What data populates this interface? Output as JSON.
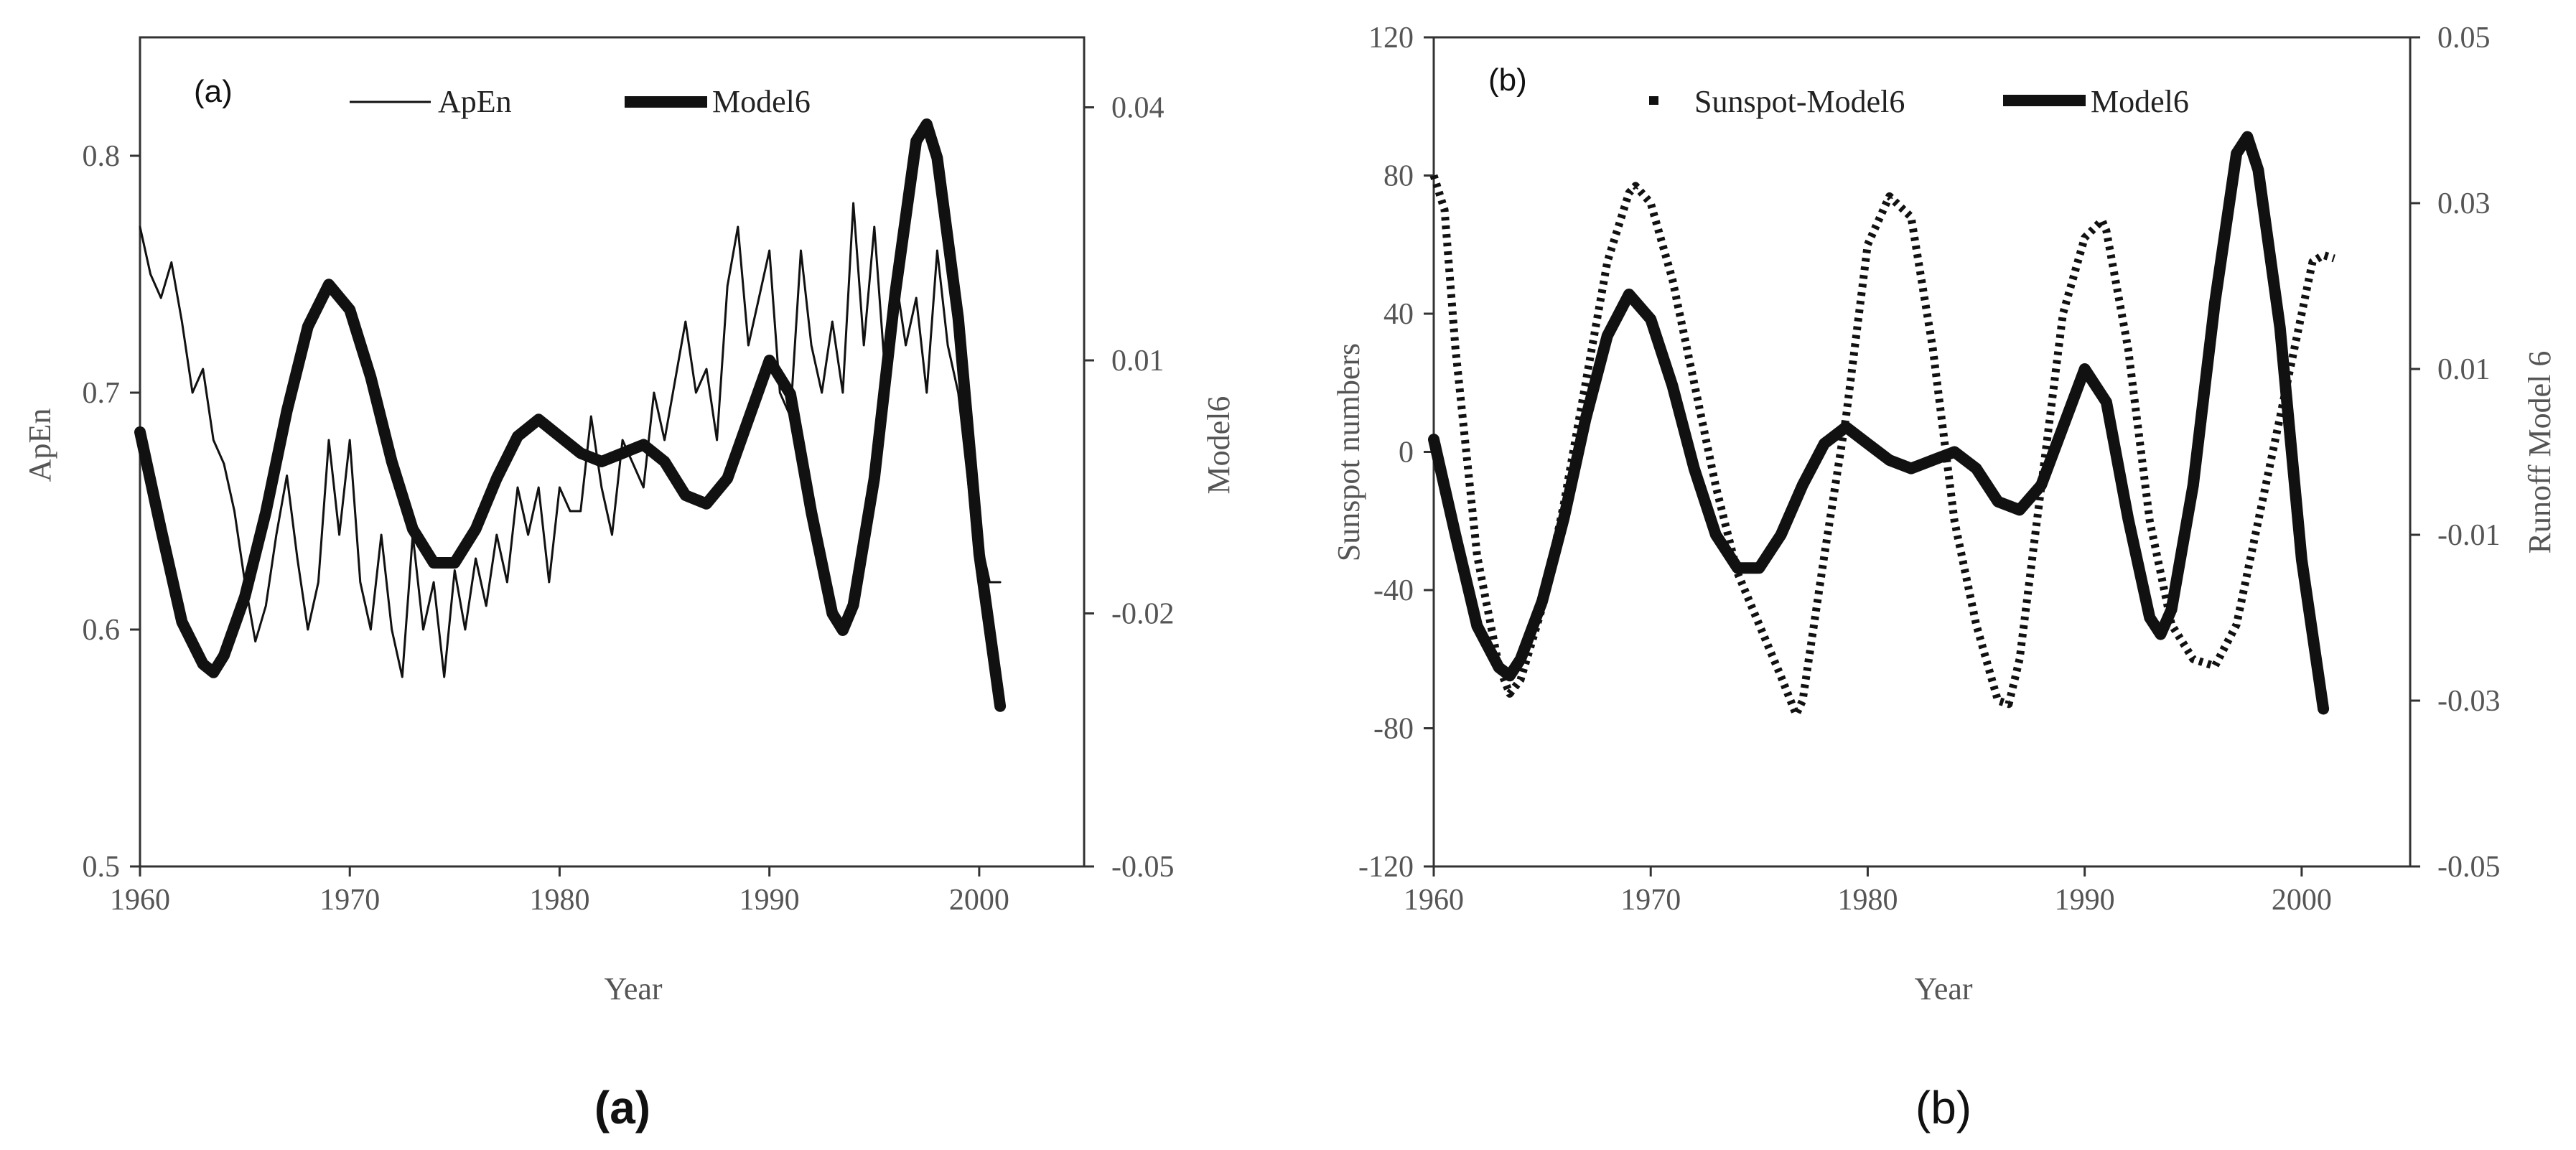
{
  "chart_data": [
    {
      "type": "line",
      "panel_label": "(a)",
      "caption": "(a)",
      "xlabel": "Year",
      "ylabel": "ApEn",
      "y2label": "Model6",
      "xlim": [
        1960,
        2005
      ],
      "ylim": [
        0.5,
        0.85
      ],
      "y2lim": [
        -0.05,
        0.0483
      ],
      "xticks": [
        "1960",
        "1970",
        "1980",
        "1990",
        "2000"
      ],
      "yticks": [
        "0.5",
        "0.6",
        "0.7",
        "0.8"
      ],
      "y2ticks": [
        "-0.05",
        "-0.02",
        "0.01",
        "0.04"
      ],
      "legend": [
        "ApEn",
        "Model6"
      ],
      "series": [
        {
          "name": "ApEn",
          "axis": "left",
          "style": "thin",
          "x": [
            1960.0,
            1960.5,
            1961.0,
            1961.5,
            1962.0,
            1962.5,
            1963.0,
            1963.5,
            1964.0,
            1964.5,
            1965.0,
            1965.5,
            1966.0,
            1966.5,
            1967.0,
            1967.5,
            1968.0,
            1968.5,
            1969.0,
            1969.5,
            1970.0,
            1970.5,
            1971.0,
            1971.5,
            1972.0,
            1972.5,
            1973.0,
            1973.5,
            1974.0,
            1974.5,
            1975.0,
            1975.5,
            1976.0,
            1976.5,
            1977.0,
            1977.5,
            1978.0,
            1978.5,
            1979.0,
            1979.5,
            1980.0,
            1980.5,
            1981.0,
            1981.5,
            1982.0,
            1982.5,
            1983.0,
            1983.5,
            1984.0,
            1984.5,
            1985.0,
            1985.5,
            1986.0,
            1986.5,
            1987.0,
            1987.5,
            1988.0,
            1988.5,
            1989.0,
            1989.5,
            1990.0,
            1990.5,
            1991.0,
            1991.5,
            1992.0,
            1992.5,
            1993.0,
            1993.5,
            1994.0,
            1994.5,
            1995.0,
            1995.5,
            1996.0,
            1996.5,
            1997.0,
            1997.5,
            1998.0,
            1998.5,
            1999.0,
            1999.5,
            2000.0,
            2000.5,
            2001.0
          ],
          "values": [
            0.77,
            0.75,
            0.74,
            0.755,
            0.73,
            0.7,
            0.71,
            0.68,
            0.67,
            0.65,
            0.62,
            0.595,
            0.61,
            0.64,
            0.665,
            0.63,
            0.6,
            0.62,
            0.68,
            0.64,
            0.68,
            0.62,
            0.6,
            0.64,
            0.6,
            0.58,
            0.64,
            0.6,
            0.62,
            0.58,
            0.625,
            0.6,
            0.63,
            0.61,
            0.64,
            0.62,
            0.66,
            0.64,
            0.66,
            0.62,
            0.66,
            0.65,
            0.65,
            0.69,
            0.66,
            0.64,
            0.68,
            0.67,
            0.66,
            0.7,
            0.68,
            0.705,
            0.73,
            0.7,
            0.71,
            0.68,
            0.745,
            0.77,
            0.72,
            0.74,
            0.76,
            0.7,
            0.69,
            0.76,
            0.72,
            0.7,
            0.73,
            0.7,
            0.78,
            0.72,
            0.77,
            0.71,
            0.75,
            0.72,
            0.74,
            0.7,
            0.76,
            0.72,
            0.7,
            0.66,
            0.64,
            0.62,
            0.62
          ]
        },
        {
          "name": "Model6",
          "axis": "right",
          "style": "thick",
          "x": [
            1960,
            1961,
            1962,
            1963,
            1963.5,
            1964,
            1965,
            1966,
            1967,
            1968,
            1969,
            1970,
            1971,
            1972,
            1973,
            1974,
            1975,
            1976,
            1977,
            1978,
            1979,
            1980,
            1981,
            1982,
            1983,
            1984,
            1985,
            1986,
            1987,
            1988,
            1989,
            1990,
            1991,
            1992,
            1993,
            1993.5,
            1994,
            1995,
            1996,
            1997,
            1997.5,
            1998,
            1999,
            2000,
            2001
          ],
          "values": [
            0.0015,
            -0.01,
            -0.021,
            -0.026,
            -0.027,
            -0.025,
            -0.018,
            -0.008,
            0.004,
            0.014,
            0.019,
            0.016,
            0.008,
            -0.002,
            -0.01,
            -0.014,
            -0.014,
            -0.01,
            -0.004,
            0.001,
            0.003,
            0.001,
            -0.001,
            -0.002,
            -0.001,
            0.0,
            -0.002,
            -0.006,
            -0.007,
            -0.004,
            0.003,
            0.01,
            0.006,
            -0.008,
            -0.02,
            -0.022,
            -0.019,
            -0.004,
            0.018,
            0.036,
            0.038,
            0.034,
            0.015,
            -0.013,
            -0.031
          ]
        }
      ]
    },
    {
      "type": "line",
      "panel_label": "(b)",
      "caption": "(b)",
      "xlabel": "Year",
      "ylabel": "Sunspot numbers",
      "y2label": "Runoff Model 6",
      "xlim": [
        1960,
        2005
      ],
      "ylim": [
        -120,
        120
      ],
      "y2lim": [
        -0.05,
        0.05
      ],
      "xticks": [
        "1960",
        "1970",
        "1980",
        "1990",
        "2000"
      ],
      "yticks": [
        "-120",
        "-80",
        "-40",
        "0",
        "40",
        "80",
        "120"
      ],
      "y2ticks": [
        "-0.05",
        "-0.03",
        "-0.01",
        "0.01",
        "0.03",
        "0.05"
      ],
      "legend": [
        "Sunspot-Model6",
        "Model6"
      ],
      "series": [
        {
          "name": "Sunspot-Model6",
          "axis": "left",
          "style": "dotted",
          "x": [
            1960,
            1960.5,
            1961,
            1962,
            1963,
            1963.5,
            1964,
            1965,
            1966,
            1967,
            1968,
            1969,
            1969.3,
            1970,
            1971,
            1972,
            1973,
            1974,
            1975,
            1976,
            1976.7,
            1977,
            1978,
            1979,
            1980,
            1981,
            1982,
            1983,
            1984,
            1985,
            1986,
            1986.5,
            1987,
            1988,
            1989,
            1990,
            1990.8,
            1991,
            1992,
            1993,
            1994,
            1995,
            1996,
            1997,
            1998,
            1999,
            2000,
            2000.5,
            2001,
            2001.5
          ],
          "values": [
            80,
            70,
            30,
            -30,
            -62,
            -70,
            -66,
            -45,
            -15,
            20,
            55,
            75,
            77,
            72,
            50,
            20,
            -10,
            -35,
            -50,
            -65,
            -76,
            -72,
            -30,
            10,
            60,
            74,
            68,
            30,
            -20,
            -50,
            -72,
            -73,
            -60,
            -10,
            40,
            62,
            67,
            64,
            30,
            -20,
            -50,
            -60,
            -62,
            -50,
            -20,
            10,
            40,
            55,
            57,
            56
          ]
        },
        {
          "name": "Model6",
          "axis": "right",
          "style": "thick",
          "x": [
            1960,
            1961,
            1962,
            1963,
            1963.5,
            1964,
            1965,
            1966,
            1967,
            1968,
            1969,
            1970,
            1971,
            1972,
            1973,
            1974,
            1975,
            1976,
            1977,
            1978,
            1979,
            1980,
            1981,
            1982,
            1983,
            1984,
            1985,
            1986,
            1987,
            1988,
            1989,
            1990,
            1991,
            1992,
            1993,
            1993.5,
            1994,
            1995,
            1996,
            1997,
            1997.5,
            1998,
            1999,
            2000,
            2001
          ],
          "values": [
            0.0015,
            -0.01,
            -0.021,
            -0.026,
            -0.027,
            -0.025,
            -0.018,
            -0.008,
            0.004,
            0.014,
            0.019,
            0.016,
            0.008,
            -0.002,
            -0.01,
            -0.014,
            -0.014,
            -0.01,
            -0.004,
            0.001,
            0.003,
            0.001,
            -0.001,
            -0.002,
            -0.001,
            0.0,
            -0.002,
            -0.006,
            -0.007,
            -0.004,
            0.003,
            0.01,
            0.006,
            -0.008,
            -0.02,
            -0.022,
            -0.019,
            -0.004,
            0.018,
            0.036,
            0.038,
            0.034,
            0.015,
            -0.013,
            -0.031
          ]
        }
      ]
    }
  ]
}
